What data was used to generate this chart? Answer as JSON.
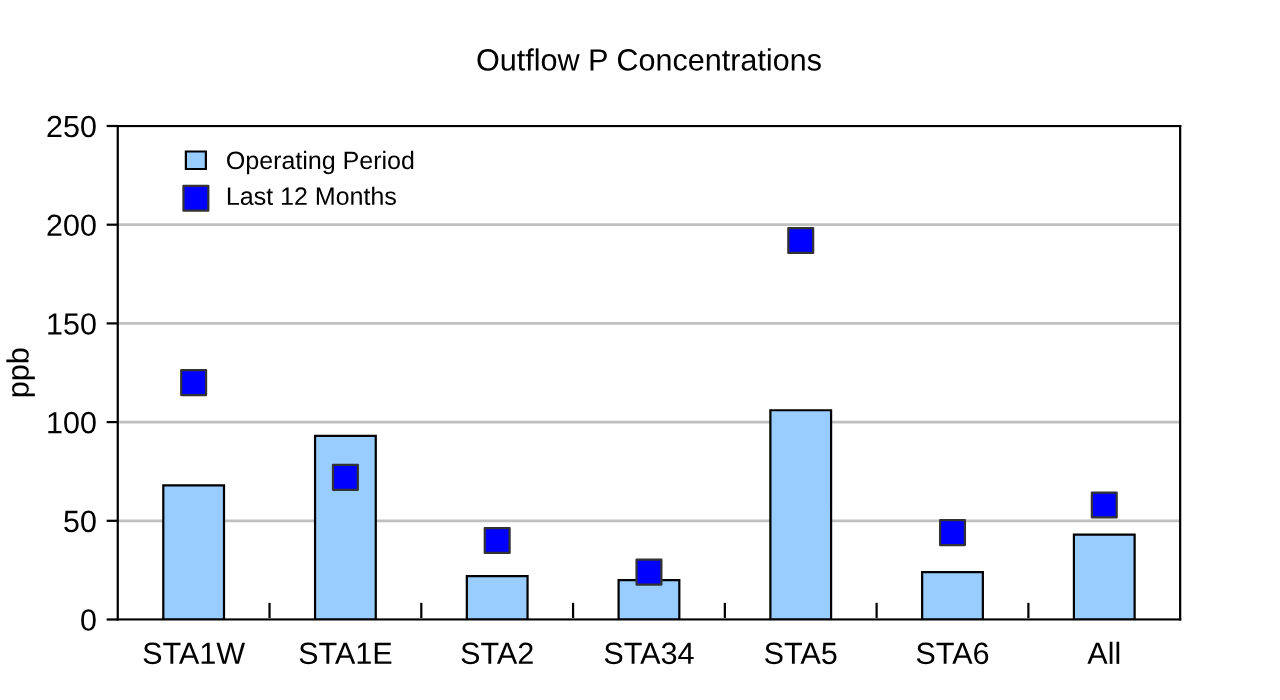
{
  "chart_data": {
    "type": "bar",
    "title": "Outflow P Concentrations",
    "ylabel": "ppb",
    "categories": [
      "STA1W",
      "STA1E",
      "STA2",
      "STA34",
      "STA5",
      "STA6",
      "All"
    ],
    "series": [
      {
        "name": "Operating Period",
        "color": "#99ccff",
        "values": [
          68,
          93,
          22,
          20,
          106,
          24,
          43
        ]
      },
      {
        "name": "Last 12 Months",
        "type": "scatter",
        "color": "#0000ff",
        "marker": "square",
        "values": [
          120,
          72,
          40,
          24,
          192,
          44,
          58
        ]
      }
    ],
    "ylim": [
      0,
      250
    ],
    "yticks": [
      0,
      50,
      100,
      150,
      200,
      250
    ],
    "grid": "y",
    "legend": "top left"
  }
}
